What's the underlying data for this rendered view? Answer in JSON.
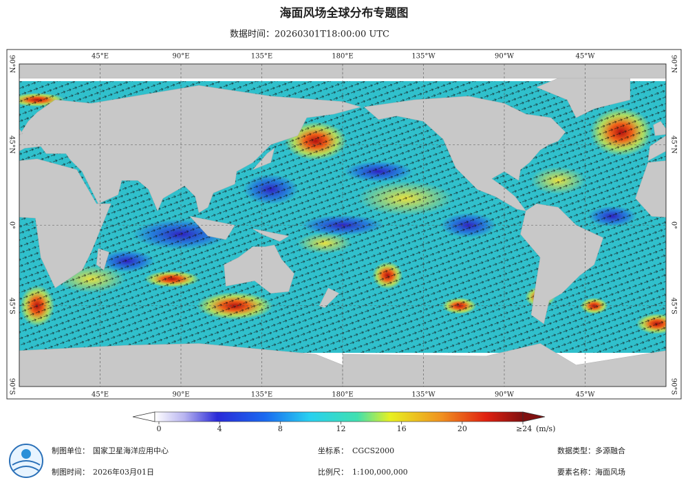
{
  "map": {
    "title": "海面风场全球分布专题图",
    "subtitle": "数据时间：20260301T18:00:00 UTC",
    "lon_ticks": [
      {
        "value": 45,
        "label": "45°E"
      },
      {
        "value": 90,
        "label": "90°E"
      },
      {
        "value": 135,
        "label": "135°E"
      },
      {
        "value": 180,
        "label": "180°E"
      },
      {
        "value": -135,
        "label": "135°W"
      },
      {
        "value": -90,
        "label": "90°W"
      },
      {
        "value": -45,
        "label": "45°W"
      }
    ],
    "lat_ticks": [
      {
        "value": 90,
        "label": "90°N"
      },
      {
        "value": 45,
        "label": "45°N"
      },
      {
        "value": 0,
        "label": "0°"
      },
      {
        "value": -45,
        "label": "45°S"
      },
      {
        "value": -90,
        "label": "90°S"
      }
    ]
  },
  "colorbar": {
    "ticks": [
      0,
      4,
      8,
      12,
      16,
      20,
      {
        "value": 24,
        "label": "≥24"
      }
    ],
    "unit": "(m/s)"
  },
  "footer": [
    {
      "label": "制图单位：",
      "value": "国家卫星海洋应用中心"
    },
    {
      "label": "坐标系：",
      "value": "CGCS2000"
    },
    {
      "label": "数据类型：",
      "value": "多源融合"
    },
    {
      "label": "制图时间：",
      "value": "2026年03月01日"
    },
    {
      "label": "比例尺：",
      "value": "1:100,000,000"
    },
    {
      "label": "要素名称：",
      "value": "海面风场"
    }
  ]
}
